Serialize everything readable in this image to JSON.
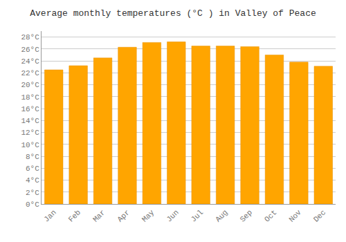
{
  "chart_data": {
    "type": "bar",
    "title": "Average monthly temperatures (°C ) in Valley of Peace",
    "categories": [
      "Jan",
      "Feb",
      "Mar",
      "Apr",
      "May",
      "Jun",
      "Jul",
      "Aug",
      "Sep",
      "Oct",
      "Nov",
      "Dec"
    ],
    "values": [
      22.5,
      23.2,
      24.5,
      26.3,
      27.1,
      27.2,
      26.5,
      26.5,
      26.4,
      25.0,
      23.8,
      23.1
    ],
    "color": "#FFA500",
    "ylim": [
      0,
      29
    ],
    "yticks": [
      {
        "value": 0,
        "label": "0°C"
      },
      {
        "value": 2,
        "label": "2°C"
      },
      {
        "value": 4,
        "label": "4°C"
      },
      {
        "value": 6,
        "label": "6°C"
      },
      {
        "value": 8,
        "label": "8°C"
      },
      {
        "value": 10,
        "label": "10°C"
      },
      {
        "value": 12,
        "label": "12°C"
      },
      {
        "value": 14,
        "label": "14°C"
      },
      {
        "value": 16,
        "label": "16°C"
      },
      {
        "value": 18,
        "label": "18°C"
      },
      {
        "value": 20,
        "label": "20°C"
      },
      {
        "value": 22,
        "label": "22°C"
      },
      {
        "value": 24,
        "label": "24°C"
      },
      {
        "value": 26,
        "label": "26°C"
      },
      {
        "value": 28,
        "label": "28°C"
      }
    ],
    "grid": true
  }
}
